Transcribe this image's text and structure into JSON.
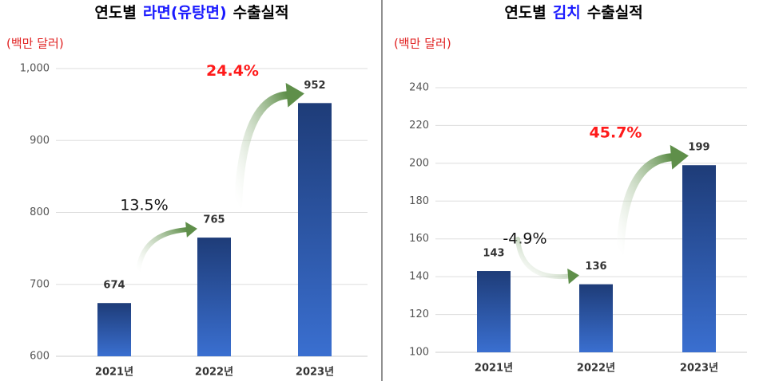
{
  "chart_data": [
    {
      "type": "bar",
      "title": {
        "prefix": "연도별",
        "subject": "라면(유탕면)",
        "suffix": "수출실적"
      },
      "subject_color": "#1a1aff",
      "unit_label": "(백만 달러)",
      "categories": [
        "2021년",
        "2022년",
        "2023년"
      ],
      "values": [
        674,
        765,
        952
      ],
      "color": "#2a55a8",
      "ylim": [
        600,
        1000
      ],
      "yticks": [
        600,
        700,
        800,
        900,
        {
          "value": 1000,
          "label": "1,000"
        }
      ],
      "grid": true,
      "annotations": [
        {
          "text": "13.5%",
          "color": "#111111"
        },
        {
          "text": "24.4%",
          "color": "#ff1a1a"
        }
      ]
    },
    {
      "type": "bar",
      "title": {
        "prefix": "연도별",
        "subject": "김치",
        "suffix": "수출실적"
      },
      "subject_color": "#1a1aff",
      "unit_label": "(백만 달러)",
      "categories": [
        "2021년",
        "2022년",
        "2023년"
      ],
      "values": [
        143,
        136,
        199
      ],
      "color": "#2a55a8",
      "ylim": [
        100,
        240
      ],
      "yticks": [
        100,
        120,
        140,
        160,
        180,
        200,
        220,
        240
      ],
      "grid": true,
      "annotations": [
        {
          "text": "-4.9%",
          "color": "#111111"
        },
        {
          "text": "45.7%",
          "color": "#ff1a1a"
        }
      ]
    }
  ]
}
